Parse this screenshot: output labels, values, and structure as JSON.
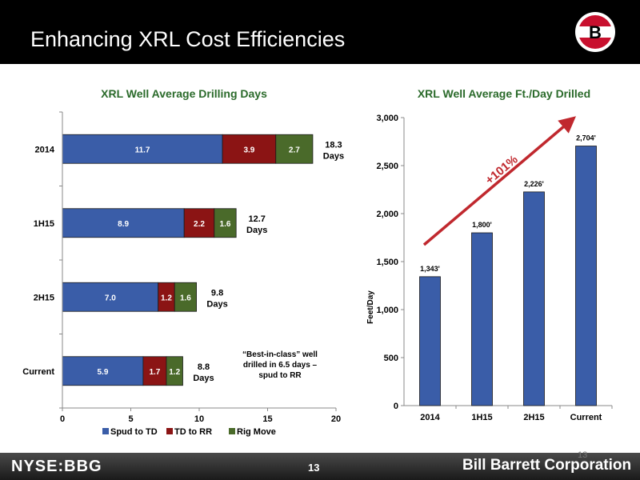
{
  "header": {
    "title": "Enhancing XRL Cost Efficiencies",
    "logo_letter": "B"
  },
  "footer": {
    "ticker": "NYSE:BBG",
    "page_number": "13",
    "page_number_ghost": "13",
    "company": "Bill Barrett Corporation"
  },
  "colors": {
    "spud": "#3A5DA8",
    "td": "#8B1414",
    "rig": "#4A6A2A",
    "bar": "#3A5DA8",
    "arrow": "#C0282E"
  },
  "chart_data": [
    {
      "type": "bar",
      "orientation": "horizontal",
      "stacked": true,
      "title": "XRL Well Average Drilling Days",
      "categories": [
        "2014",
        "1H15",
        "2H15",
        "Current"
      ],
      "series": [
        {
          "name": "Spud to TD",
          "values": [
            11.7,
            8.9,
            7.0,
            5.9
          ],
          "labels": [
            "11.7",
            "8.9",
            "7.0",
            "5.9"
          ]
        },
        {
          "name": "TD to RR",
          "values": [
            3.9,
            2.2,
            1.2,
            1.7
          ],
          "labels": [
            "3.9",
            "2.2",
            "1.2",
            "1.7"
          ]
        },
        {
          "name": "Rig Move",
          "values": [
            2.7,
            1.6,
            1.6,
            1.2
          ],
          "labels": [
            "2.7",
            "1.6",
            "1.6",
            "1.2"
          ]
        }
      ],
      "totals": [
        {
          "value": "18.3",
          "unit": "Days"
        },
        {
          "value": "12.7",
          "unit": "Days"
        },
        {
          "value": "9.8",
          "unit": "Days"
        },
        {
          "value": "8.8",
          "unit": "Days"
        }
      ],
      "xlim": [
        0,
        20
      ],
      "xticks": [
        "0",
        "5",
        "10",
        "15",
        "20"
      ],
      "legend": "bottom",
      "annotation": [
        "“Best-in-class” well",
        "drilled in 6.5 days –",
        "spud to RR"
      ]
    },
    {
      "type": "bar",
      "title": "XRL Well Average Ft./Day Drilled",
      "categories": [
        "2014",
        "1H15",
        "2H15",
        "Current"
      ],
      "values": [
        1343,
        1800,
        2226,
        2704
      ],
      "value_labels": [
        "1,343'",
        "1,800'",
        "2,226'",
        "2,704'"
      ],
      "ylabel": "Feet/Day",
      "ylim": [
        0,
        3000
      ],
      "yticks": [
        "0",
        "500",
        "1,000",
        "1,500",
        "2,000",
        "2,500",
        "3,000"
      ],
      "annotation": "+101%"
    }
  ]
}
